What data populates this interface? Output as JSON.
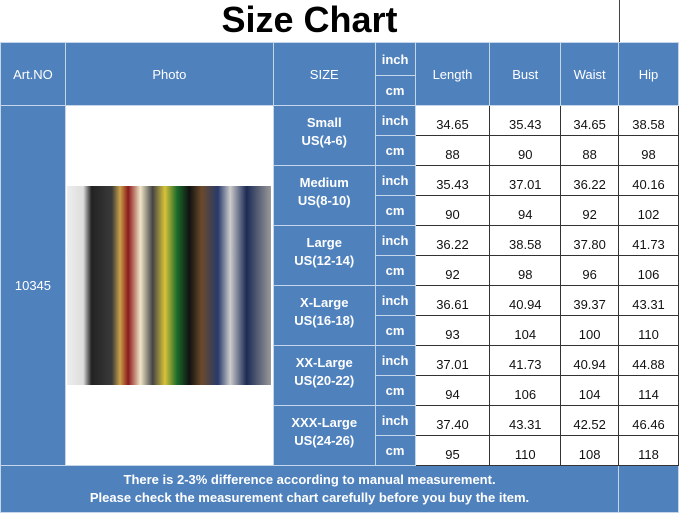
{
  "title": "Size Chart",
  "headers": {
    "art_no": "Art.NO",
    "photo": "Photo",
    "size": "SIZE",
    "unit_inch": "inch",
    "unit_cm": "cm",
    "length": "Length",
    "bust": "Bust",
    "waist": "Waist",
    "hip": "Hip"
  },
  "art_no_value": "10345",
  "photo_alt": "women wearing printed shirts",
  "sizes": [
    {
      "name": "Small",
      "us": "US(4-6)",
      "inch": [
        "34.65",
        "35.43",
        "34.65",
        "38.58"
      ],
      "cm": [
        "88",
        "90",
        "88",
        "98"
      ]
    },
    {
      "name": "Medium",
      "us": "US(8-10)",
      "inch": [
        "35.43",
        "37.01",
        "36.22",
        "40.16"
      ],
      "cm": [
        "90",
        "94",
        "92",
        "102"
      ]
    },
    {
      "name": "Large",
      "us": "US(12-14)",
      "inch": [
        "36.22",
        "38.58",
        "37.80",
        "41.73"
      ],
      "cm": [
        "92",
        "98",
        "96",
        "106"
      ]
    },
    {
      "name": "X-Large",
      "us": "US(16-18)",
      "inch": [
        "36.61",
        "40.94",
        "39.37",
        "43.31"
      ],
      "cm": [
        "93",
        "104",
        "100",
        "110"
      ]
    },
    {
      "name": "XX-Large",
      "us": "US(20-22)",
      "inch": [
        "37.01",
        "41.73",
        "40.94",
        "44.88"
      ],
      "cm": [
        "94",
        "106",
        "104",
        "114"
      ]
    },
    {
      "name": "XXX-Large",
      "us": "US(24-26)",
      "inch": [
        "37.40",
        "43.31",
        "42.52",
        "46.46"
      ],
      "cm": [
        "95",
        "110",
        "108",
        "118"
      ]
    }
  ],
  "footer": {
    "line1": "There is 2-3% difference according to manual measurement.",
    "line2": "Please check the measurement chart carefully before you buy the item."
  },
  "colors": {
    "header_blue": "#4f81bd"
  }
}
